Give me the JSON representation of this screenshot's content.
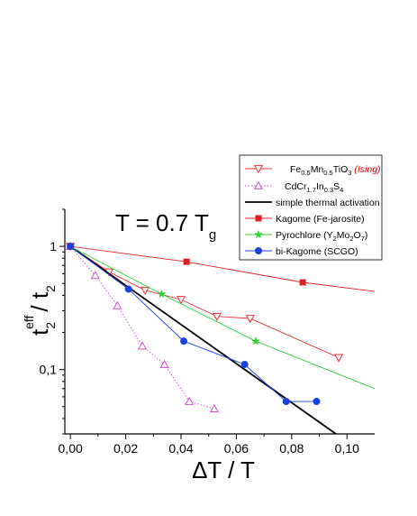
{
  "chart_data": {
    "type": "scatter",
    "title": "",
    "xlabel": "ΔT / T",
    "ylabel": "t2eff / t2",
    "ylabel_parts": {
      "main": "t",
      "sub": "2",
      "sup": "eff",
      "divider": "/ t",
      "sub2": "2"
    },
    "xscale": "linear",
    "yscale": "log",
    "xlim": [
      -0.002,
      0.11
    ],
    "ylim": [
      0.03,
      2.0
    ],
    "x_ticks": [
      0.0,
      0.02,
      0.04,
      0.06,
      0.08,
      0.1
    ],
    "x_tick_labels": [
      "0,00",
      "0,02",
      "0,04",
      "0,06",
      "0,08",
      "0,10"
    ],
    "y_ticks": [
      1,
      0.1
    ],
    "y_tick_labels": [
      "1",
      "0,1"
    ],
    "annotation": {
      "text": "T = 0.7 T",
      "sub": "g"
    },
    "legend_position": "top-right",
    "series": [
      {
        "name": "Fe0.5Mn0.5TiO3 (Ising)",
        "legend_parts": [
          {
            "t": "Fe"
          },
          {
            "t": "0.5",
            "sub": true
          },
          {
            "t": "Mn"
          },
          {
            "t": "0.5",
            "sub": true
          },
          {
            "t": "TiO"
          },
          {
            "t": "3",
            "sub": true
          },
          {
            "t": " (Ising)",
            "ising": true
          }
        ],
        "color": "#e83030",
        "marker": "triangle-down-open",
        "line": "solid",
        "x": [
          0.0,
          0.014,
          0.027,
          0.04,
          0.053,
          0.065,
          0.097
        ],
        "y": [
          1.0,
          0.62,
          0.44,
          0.37,
          0.27,
          0.26,
          0.125
        ]
      },
      {
        "name": "CdCr1.7In0.3S4",
        "legend_parts": [
          {
            "t": "CdCr"
          },
          {
            "t": "1.7",
            "sub": true
          },
          {
            "t": "In"
          },
          {
            "t": "0.3",
            "sub": true
          },
          {
            "t": "S"
          },
          {
            "t": "4",
            "sub": true
          }
        ],
        "color": "#d050d0",
        "marker": "triangle-up-open",
        "line": "dotted",
        "x": [
          0.0,
          0.009,
          0.017,
          0.026,
          0.034,
          0.043,
          0.052
        ],
        "y": [
          1.0,
          0.58,
          0.33,
          0.155,
          0.11,
          0.055,
          0.048
        ]
      },
      {
        "name": "simple thermal activation",
        "legend_parts": [
          {
            "t": "simple thermal activation"
          }
        ],
        "color": "#000000",
        "marker": "none",
        "line": "solid-thick",
        "x": [
          0.0,
          0.096
        ],
        "y": [
          1.0,
          0.03
        ]
      },
      {
        "name": "Kagome (Fe-jarosite)",
        "legend_parts": [
          {
            "t": "Kagome (Fe-jarosite)"
          }
        ],
        "color": "#e02020",
        "marker": "square-filled",
        "line": "solid",
        "x": [
          0.0,
          0.042,
          0.084,
          0.11
        ],
        "y": [
          1.0,
          0.75,
          0.51,
          0.43
        ],
        "marker_points": [
          [
            0.0,
            1.0
          ],
          [
            0.042,
            0.75
          ],
          [
            0.084,
            0.51
          ]
        ]
      },
      {
        "name": "Pyrochlore (Y2Mo2O7)",
        "legend_parts": [
          {
            "t": "Pyrochlore (Y"
          },
          {
            "t": "2",
            "sub": true
          },
          {
            "t": "Mo"
          },
          {
            "t": "2",
            "sub": true
          },
          {
            "t": "O"
          },
          {
            "t": "7",
            "sub": true
          },
          {
            "t": ")"
          }
        ],
        "color": "#30d030",
        "marker": "star-filled",
        "line": "solid",
        "x": [
          0.0,
          0.033,
          0.067,
          0.11
        ],
        "y": [
          1.0,
          0.41,
          0.17,
          0.07
        ],
        "marker_points": [
          [
            0.0,
            1.0
          ],
          [
            0.033,
            0.41
          ],
          [
            0.067,
            0.17
          ]
        ]
      },
      {
        "name": "bi-Kagome (SCGO)",
        "legend_parts": [
          {
            "t": "bi-Kagome (SCGO)"
          }
        ],
        "color": "#1840e0",
        "marker": "circle-filled",
        "line": "solid",
        "x": [
          0.0,
          0.021,
          0.041,
          0.063,
          0.078,
          0.089
        ],
        "y": [
          1.0,
          0.45,
          0.17,
          0.11,
          0.055,
          0.055
        ]
      }
    ]
  }
}
